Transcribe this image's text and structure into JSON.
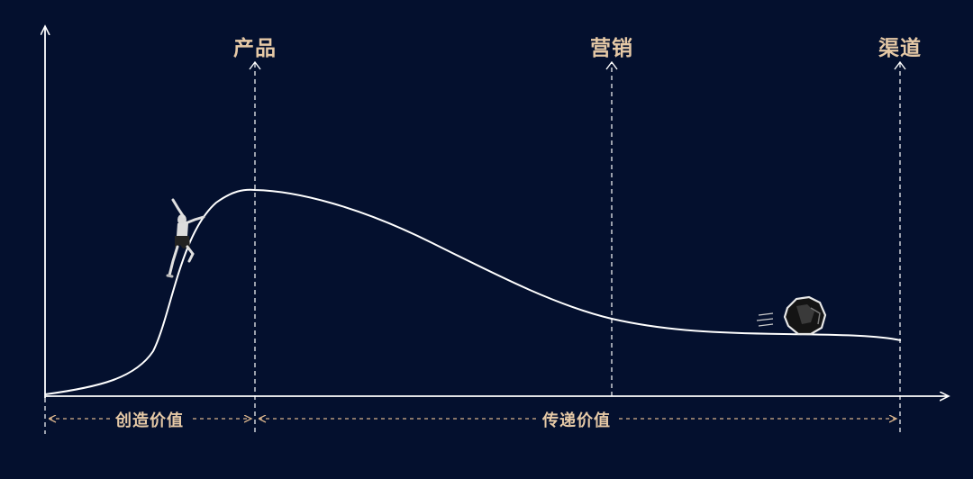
{
  "stages": [
    {
      "label": "产品"
    },
    {
      "label": "营销"
    },
    {
      "label": "渠道"
    }
  ],
  "phases": [
    {
      "label": "创造价值"
    },
    {
      "label": "传递价值"
    }
  ],
  "colors": {
    "background": "#04102e",
    "line": "#ffffff",
    "label": "#e6c9a6"
  },
  "illustrations": [
    "climber-figure",
    "rolling-rock"
  ]
}
